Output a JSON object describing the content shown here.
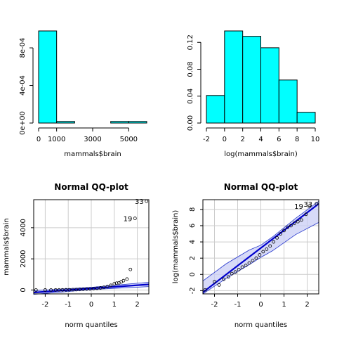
{
  "chart_data": [
    {
      "type": "bar",
      "title": "",
      "xlabel": "mammals$brain",
      "ylabel": "",
      "bins": [
        [
          0,
          1000
        ],
        [
          1000,
          2000
        ],
        [
          2000,
          3000
        ],
        [
          3000,
          4000
        ],
        [
          4000,
          5000
        ],
        [
          5000,
          6000
        ]
      ],
      "values": [
        0.00098,
        1.67e-05,
        0,
        0,
        1.67e-05,
        1.67e-05
      ],
      "xlim": [
        0,
        6000
      ],
      "ylim": [
        0,
        0.00098
      ],
      "xticks": [
        0,
        1000,
        3000,
        5000
      ],
      "xtick_labels": [
        "0",
        "1000",
        "3000",
        "5000"
      ],
      "yticks": [
        0,
        0.0004,
        0.0008
      ],
      "ytick_labels": [
        "0e+00",
        "4e-04",
        "8e-04"
      ],
      "fill": "#00ffff"
    },
    {
      "type": "bar",
      "title": "",
      "xlabel": "log(mammals$brain)",
      "ylabel": "",
      "bins": [
        [
          -2,
          0
        ],
        [
          0,
          2
        ],
        [
          2,
          4
        ],
        [
          4,
          6
        ],
        [
          6,
          8
        ],
        [
          8,
          10
        ]
      ],
      "values": [
        0.041,
        0.137,
        0.129,
        0.112,
        0.064,
        0.016
      ],
      "xlim": [
        -2,
        10
      ],
      "ylim": [
        0,
        0.137
      ],
      "xticks": [
        -2,
        0,
        2,
        4,
        6,
        8,
        10
      ],
      "xtick_labels": [
        "-2",
        "0",
        "2",
        "4",
        "6",
        "8",
        "10"
      ],
      "yticks": [
        0,
        0.04,
        0.08,
        0.12
      ],
      "ytick_labels": [
        "0.00",
        "0.04",
        "0.08",
        "0.12"
      ],
      "fill": "#00ffff"
    },
    {
      "type": "scatter",
      "title": "Normal QQ-plot",
      "xlabel": "norm quantiles",
      "ylabel": "mammals$brain",
      "xlim": [
        -2.5,
        2.5
      ],
      "ylim": [
        -250,
        5800
      ],
      "xticks": [
        -2,
        -1,
        0,
        1,
        2
      ],
      "xtick_labels": [
        "-2",
        "-1",
        "0",
        "1",
        "2"
      ],
      "yticks": [
        0,
        2000,
        4000
      ],
      "ytick_labels": [
        "0",
        "2000",
        "4000"
      ],
      "grid": true,
      "points": [
        [
          -2.4,
          0
        ],
        [
          -2.0,
          2
        ],
        [
          -1.75,
          3
        ],
        [
          -1.55,
          5
        ],
        [
          -1.4,
          8
        ],
        [
          -1.25,
          10
        ],
        [
          -1.1,
          12
        ],
        [
          -0.95,
          15
        ],
        [
          -0.8,
          20
        ],
        [
          -0.65,
          25
        ],
        [
          -0.5,
          35
        ],
        [
          -0.35,
          45
        ],
        [
          -0.2,
          60
        ],
        [
          -0.05,
          70
        ],
        [
          0.1,
          90
        ],
        [
          0.25,
          110
        ],
        [
          0.4,
          130
        ],
        [
          0.55,
          170
        ],
        [
          0.7,
          220
        ],
        [
          0.85,
          300
        ],
        [
          1.0,
          400
        ],
        [
          1.1,
          440
        ],
        [
          1.2,
          460
        ],
        [
          1.3,
          520
        ],
        [
          1.4,
          600
        ],
        [
          1.55,
          700
        ],
        [
          1.7,
          1320
        ],
        [
          1.9,
          4600
        ],
        [
          2.4,
          5700
        ]
      ],
      "labels": [
        {
          "text": "19",
          "x": 1.9,
          "y": 4600
        },
        {
          "text": "33",
          "x": 2.4,
          "y": 5700
        }
      ],
      "line": [
        [
          -2.5,
          -160
        ],
        [
          2.5,
          360
        ]
      ],
      "band_upper": [
        [
          -2.5,
          -40
        ],
        [
          0,
          170
        ],
        [
          2.5,
          500
        ]
      ],
      "band_lower": [
        [
          -2.5,
          -280
        ],
        [
          0,
          30
        ],
        [
          2.5,
          220
        ]
      ]
    },
    {
      "type": "scatter",
      "title": "Normal QQ-plot",
      "xlabel": "norm quantiles",
      "ylabel": "log(mammals$brain)",
      "xlim": [
        -2.5,
        2.5
      ],
      "ylim": [
        -2.4,
        9.2
      ],
      "xticks": [
        -2,
        -1,
        0,
        1,
        2
      ],
      "xtick_labels": [
        "-2",
        "-1",
        "0",
        "1",
        "2"
      ],
      "yticks": [
        -2,
        0,
        2,
        4,
        6,
        8
      ],
      "ytick_labels": [
        "-2",
        "0",
        "2",
        "4",
        "6",
        "8"
      ],
      "grid": true,
      "points": [
        [
          -2.4,
          -1.9
        ],
        [
          -2.0,
          -0.9
        ],
        [
          -1.8,
          -1.3
        ],
        [
          -1.6,
          -0.6
        ],
        [
          -1.4,
          -0.3
        ],
        [
          -1.25,
          0.1
        ],
        [
          -1.1,
          0.3
        ],
        [
          -0.95,
          0.6
        ],
        [
          -0.8,
          0.9
        ],
        [
          -0.65,
          1.1
        ],
        [
          -0.5,
          1.4
        ],
        [
          -0.35,
          1.7
        ],
        [
          -0.2,
          2.0
        ],
        [
          -0.05,
          2.4
        ],
        [
          0.1,
          2.8
        ],
        [
          0.25,
          3.1
        ],
        [
          0.4,
          3.5
        ],
        [
          0.55,
          4.0
        ],
        [
          0.7,
          4.5
        ],
        [
          0.85,
          5.0
        ],
        [
          1.0,
          5.4
        ],
        [
          1.15,
          5.8
        ],
        [
          1.3,
          6.0
        ],
        [
          1.45,
          6.3
        ],
        [
          1.6,
          6.5
        ],
        [
          1.75,
          6.7
        ],
        [
          1.95,
          7.4
        ],
        [
          2.1,
          8.4
        ],
        [
          2.4,
          8.7
        ]
      ],
      "labels": [
        {
          "text": "19",
          "x": 1.95,
          "y": 8.4
        },
        {
          "text": "33",
          "x": 2.35,
          "y": 8.7
        }
      ],
      "line": [
        [
          -2.5,
          -2.2
        ],
        [
          2.5,
          8.7
        ]
      ],
      "band_upper": [
        [
          -2.5,
          -0.8
        ],
        [
          -1.5,
          1.3
        ],
        [
          -0.5,
          3.0
        ],
        [
          0,
          3.6
        ],
        [
          0.5,
          4.6
        ],
        [
          1.5,
          6.9
        ],
        [
          2.5,
          9.0
        ]
      ],
      "band_lower": [
        [
          -2.5,
          -2.4
        ],
        [
          -1.5,
          -0.5
        ],
        [
          -0.5,
          1.2
        ],
        [
          0,
          2.1
        ],
        [
          0.5,
          2.9
        ],
        [
          1.5,
          4.9
        ],
        [
          2.5,
          6.4
        ]
      ]
    }
  ],
  "colors": {
    "bar_fill": "#00ffff",
    "line": "#0000cc",
    "band_fill": "#c9cdf5",
    "band_stroke": "#2233cc",
    "grid": "#cccccc"
  }
}
